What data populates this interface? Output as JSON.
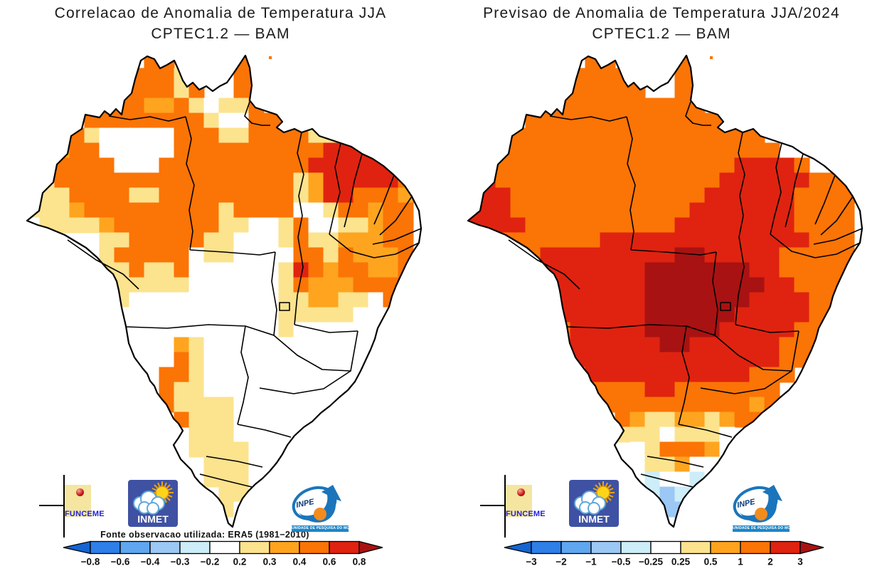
{
  "left_panel": {
    "title_line1": "Correlacao de Anomalia de Temperatura JJA",
    "title_line2": "CPTEC1.2 — BAM",
    "fonte_note": "Fonte observacao utilizada: ERA5 (1981−2010)",
    "colorbar": {
      "tick_labels": [
        "−0.8",
        "−0.6",
        "−0.4",
        "−0.3",
        "−0.2",
        "0.2",
        "0.3",
        "0.4",
        "0.6",
        "0.8"
      ]
    },
    "grid": [
      "........oo....oo...........",
      ".......oooyo..oo...........",
      "......ooooyo..oo...........",
      ".....oooaaoyWyyo...........",
      "....ooooooooyWWoooo........",
      ".yooyWWWWWoooyyooooyy......",
      ".aaooWWWWWoooooooooorrroo..",
      "yoooooWWWoooooooooorrrrrro.",
      "yyooooooooooooooooyarrrrroo",
      "Wyyooooyyoooooooooyarroooao",
      "yyyaoooooooooyooooWWyooaoo.",
      "WyyyyaoooooooyyWWyoWWyyaoo.",
      ".....yyoooooyyWWWyoyyaaaoo.",
      ".....yoooooWyyWWWWooyoaaao.",
      ".....yyoyyoWWWWWWyroaooaao.",
      "......yyyyyWWWWWWyoaaaoooo.",
      "......yWWWWWWWWWWyyaayyWoo.",
      "......WWWWWWWWWWWyyyyyWWWo.",
      "......WWWWWWWWWWWyWWWWWWW..",
      ".......WWWayWWWWWWWWWWWW...",
      ".......WWWoyWWWWWWWWWWW....",
      ".......WWooyWWWWWWWWWW.....",
      ".........oyyWWWWWWWWW......",
      ".........oyyyyWWWWWW.......",
      "..........oyyyWWWWW........",
      "...........yyyWWWW.........",
      "...........yyyyWWW.........",
      "............yyyWW..........",
      "............yyyW...........",
      ".............yyW...........",
      ".............yW............",
      "..............W............"
    ]
  },
  "right_panel": {
    "title_line1": "Previsao de Anomalia de Temperatura JJA/2024",
    "title_line2": "CPTEC1.2 — BAM",
    "colorbar": {
      "tick_labels": [
        "−3",
        "−2",
        "−1",
        "−0.5",
        "−0.25",
        "0.25",
        "0.5",
        "1",
        "2",
        "3"
      ]
    },
    "grid": [
      "........oo....oo...........",
      ".......ooooo..oo...........",
      "......oooooo..oo...........",
      ".....ooooooooooo...........",
      "....ooooooooooooooo........",
      ".ooooooooooooooooooo.......",
      ".oooooooooooooooooooo......",
      "oooooooooooooooooorrrro....",
      "rrooooooooooooooorrrrrrooo.",
      "rrrooooooooooooorrrrrrooooo",
      "rrroooooooooooorrrrrrroooo.",
      "rrrroooooooooorrrrrrrroooo.",
      "rrooooooorrrrrrrrrrrrrrooo.",
      ".rooorrrrrrrrrmmrrrrrooooo.",
      "..oorrrrrrrrmmmmmmmrrooooo.",
      "...orrrrrrrrmmmmmmmmrrooo..",
      "....orrrrrrrmmmmmmmrrrroo..",
      ".....orrrrrrmmmmmmrrrrroo..",
      ".....oorrrrrmmmmmrrrrroo...",
      "......orrrrrrmmrrrrrrooo...",
      "......orrrrrrrrrrrrrroooo..",
      ".......orrrrrrrrrrrooo.....",
      "........oooorrooooooo......",
      ".........ooooooooooao......",
      "..........oayyaayaoo.......",
      "..........yyyWyyyW.........",
      "...........WyoooaW.........",
      "...........WyyaWW..........",
      "............cWWcW..........",
      "............clccW..........",
      ".............lll...........",
      "..............l............"
    ]
  },
  "palette": {
    "d": "#1464D2",
    "b": "#2E7FE8",
    "B": "#5FA7F0",
    "l": "#9CC8F5",
    "c": "#CDEDF8",
    "W": "#FFFFFF",
    "y": "#FCE38E",
    "a": "#FFA41F",
    "o": "#FB7406",
    "r": "#DF2310",
    "m": "#A81212"
  },
  "colorbar_colors": [
    "#1464D2",
    "#2E7FE8",
    "#5FA7F0",
    "#9CC8F5",
    "#CDEDF8",
    "#FFFFFF",
    "#FCE38E",
    "#FFA41F",
    "#FB7406",
    "#DF2310",
    "#A81212"
  ],
  "logos": {
    "funceme_label": "FUNCEME",
    "inmet_label": "INMET",
    "inpe_label": "INPE",
    "inpe_banner": "UNIDADE DE PESQUISA DO MCTI"
  }
}
